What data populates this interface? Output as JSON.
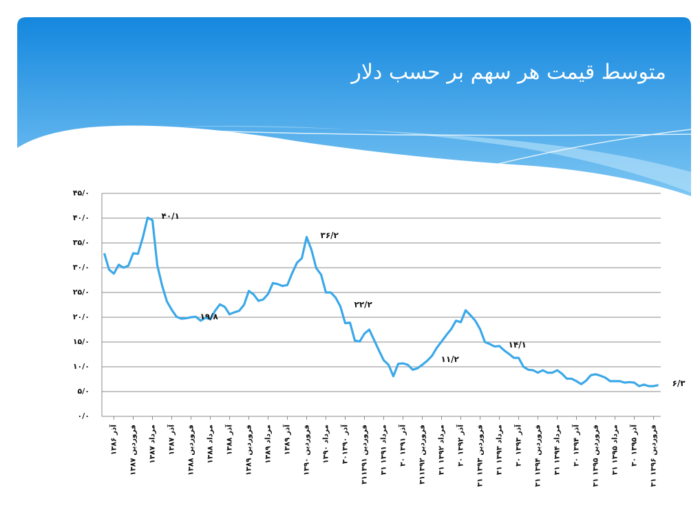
{
  "chart_data": {
    "type": "line",
    "title": "متوسط قیمت هر سهم بر حسب دلار",
    "categories": [
      null,
      null,
      "آذر ۱۳۸۶",
      null,
      null,
      null,
      "فروردین ۱۳۸۷",
      null,
      null,
      null,
      "مرداد ۱۳۸۷",
      null,
      null,
      null,
      "آذر ۱۳۸۷",
      null,
      null,
      null,
      "فروردین ۱۳۸۸",
      null,
      null,
      null,
      "مرداد ۱۳۸۸",
      null,
      null,
      null,
      "آذر ۱۳۸۸",
      null,
      null,
      null,
      "فروردین ۱۳۸۹",
      null,
      null,
      null,
      "مرداد ۱۳۸۹",
      null,
      null,
      null,
      "آذر ۱۳۸۹",
      null,
      null,
      null,
      "فروردین ۱۳۹۰",
      null,
      null,
      null,
      "مرداد ۱۳۹۰",
      null,
      null,
      null,
      "۳۰آذر ۱۳۹۰",
      null,
      null,
      null,
      "۳۱فروردین ۱۳۹۱",
      null,
      null,
      null,
      "۳۱ مرداد ۱۳۹۱",
      null,
      null,
      null,
      "۳۰ آذر ۱۳۹۱",
      null,
      null,
      null,
      "۳۱فروردین ۱۳۹۲",
      null,
      null,
      null,
      "۳۱ مرداد ۱۳۹۲",
      null,
      null,
      null,
      "۳۰ آذر ۱۳۹۲",
      null,
      null,
      null,
      "۳۱ فروردین ۱۳۹۳",
      null,
      null,
      null,
      "۳۱ مرداد ۱۳۹۳",
      null,
      null,
      null,
      "۳۰ آذر ۱۳۹۳",
      null,
      null,
      null,
      "۳۱ فروردین ۱۳۹۴",
      null,
      null,
      null,
      "۳۱ مرداد ۱۳۹۴",
      null,
      null,
      null,
      "۳۰ آذر ۱۳۹۴",
      null,
      null,
      null,
      "۳۱ فروردین ۱۳۹۵",
      null,
      null,
      null,
      "۳۱ مرداد ۱۳۹۵",
      null,
      null,
      null,
      "۳۰ آذر ۱۳۹۵",
      null,
      null,
      null,
      "۳۱ فروردین ۱۳۹۶",
      null
    ],
    "values": [
      32.9,
      29.6,
      28.8,
      30.6,
      30.0,
      30.4,
      32.9,
      32.8,
      36.1,
      40.1,
      39.6,
      30.5,
      26.4,
      23.2,
      21.5,
      20.1,
      19.7,
      19.8,
      20.0,
      20.1,
      19.3,
      19.9,
      19.6,
      21.3,
      22.6,
      22.1,
      20.6,
      21.0,
      21.3,
      22.5,
      25.3,
      24.6,
      23.3,
      23.6,
      24.7,
      26.9,
      26.7,
      26.3,
      26.5,
      28.9,
      31.0,
      31.9,
      36.2,
      33.6,
      29.9,
      28.6,
      25.0,
      25.0,
      24.0,
      22.2,
      18.8,
      18.9,
      15.3,
      15.1,
      16.7,
      17.5,
      15.4,
      13.3,
      11.3,
      10.4,
      8.1,
      10.6,
      10.7,
      10.4,
      9.4,
      9.7,
      10.4,
      11.2,
      12.2,
      13.8,
      15.1,
      16.4,
      17.6,
      19.3,
      19.0,
      21.4,
      20.4,
      19.3,
      17.6,
      15.0,
      14.6,
      14.1,
      14.2,
      13.3,
      12.6,
      11.8,
      11.8,
      10.0,
      9.4,
      9.3,
      8.8,
      9.3,
      8.8,
      8.8,
      9.3,
      8.6,
      7.6,
      7.6,
      7.1,
      6.5,
      7.2,
      8.3,
      8.5,
      8.2,
      7.8,
      7.1,
      7.1,
      7.1,
      6.8,
      6.9,
      6.8,
      6.1,
      6.4,
      6.1,
      6.1,
      6.3
    ],
    "value_labels": [
      null,
      null,
      null,
      null,
      null,
      null,
      null,
      null,
      null,
      "۴۰/۱",
      null,
      null,
      null,
      null,
      null,
      null,
      null,
      "۱۹/۸",
      null,
      null,
      null,
      null,
      null,
      null,
      null,
      null,
      null,
      null,
      null,
      null,
      null,
      null,
      null,
      null,
      null,
      null,
      null,
      null,
      null,
      null,
      null,
      null,
      "۳۶/۲",
      null,
      null,
      null,
      null,
      null,
      null,
      "۲۲/۲",
      null,
      null,
      null,
      null,
      null,
      null,
      null,
      null,
      null,
      null,
      null,
      null,
      null,
      null,
      null,
      null,
      null,
      "۱۱/۲",
      null,
      null,
      null,
      null,
      null,
      null,
      null,
      null,
      null,
      null,
      null,
      null,
      null,
      "۱۴/۱",
      null,
      null,
      null,
      null,
      null,
      null,
      null,
      null,
      null,
      null,
      null,
      null,
      null,
      null,
      null,
      null,
      null,
      null,
      null,
      null,
      null,
      null,
      null,
      null,
      null,
      null,
      null,
      null,
      null,
      null,
      null,
      null,
      null,
      "۶/۳"
    ],
    "color": "#3aa8e8",
    "ylim": [
      0,
      45
    ],
    "yticks": [
      {
        "value": 0,
        "label": "۰/۰"
      },
      {
        "value": 5,
        "label": "۵/۰"
      },
      {
        "value": 10,
        "label": "۱۰/۰"
      },
      {
        "value": 15,
        "label": "۱۵/۰"
      },
      {
        "value": 20,
        "label": "۲۰/۰"
      },
      {
        "value": 25,
        "label": "۲۵/۰"
      },
      {
        "value": 30,
        "label": "۳۰/۰"
      },
      {
        "value": 35,
        "label": "۳۵/۰"
      },
      {
        "value": 40,
        "label": "۴۰/۰"
      },
      {
        "value": 45,
        "label": "۴۵/۰"
      }
    ],
    "grid": true
  }
}
